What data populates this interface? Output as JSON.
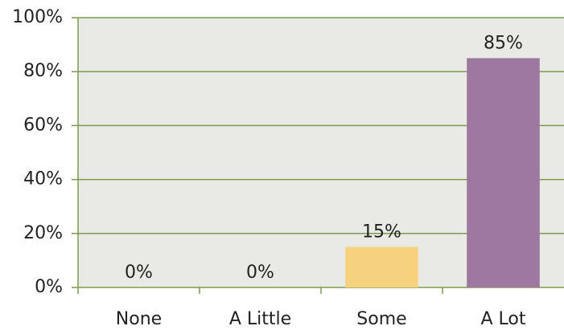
{
  "chart_data": {
    "type": "bar",
    "categories": [
      "None",
      "A Little",
      "Some",
      "A Lot"
    ],
    "values": [
      0,
      0,
      15,
      85
    ],
    "value_labels": [
      "0%",
      "0%",
      "15%",
      "85%"
    ],
    "colors": [
      "#4f81bd",
      "#c0504d",
      "#f7d27e",
      "#9e78a0"
    ],
    "ylim": [
      0,
      100
    ],
    "yticks": [
      {
        "value": 0,
        "label": "0%"
      },
      {
        "value": 20,
        "label": "20%"
      },
      {
        "value": 40,
        "label": "40%"
      },
      {
        "value": 60,
        "label": "60%"
      },
      {
        "value": 80,
        "label": "80%"
      },
      {
        "value": 100,
        "label": "100%"
      }
    ],
    "grid": true
  }
}
